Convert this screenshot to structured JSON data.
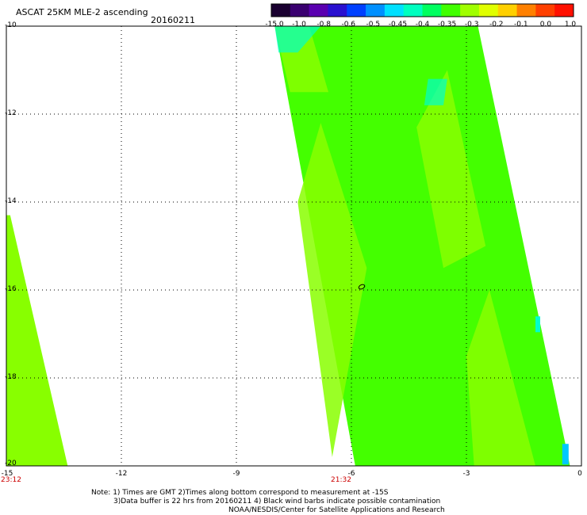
{
  "header": {
    "title": "ASCAT 25KM MLE-2 ascending",
    "date": "20160211"
  },
  "colorbar": {
    "labels": [
      "-15.0",
      "-1.0",
      "-0.8",
      "-0.6",
      "-0.5",
      "-0.45",
      "-0.4",
      "-0.35",
      "-0.3",
      "-0.2",
      "-0.1",
      "0.0",
      "1.0"
    ],
    "colors": [
      "#1a0030",
      "#3a0070",
      "#5a00b0",
      "#2a10d0",
      "#0040ff",
      "#0090ff",
      "#00e0ff",
      "#00ffc0",
      "#00ff60",
      "#40ff00",
      "#a0ff00",
      "#e0ff00",
      "#ffd000",
      "#ff8000",
      "#ff4000",
      "#ff1000"
    ]
  },
  "map": {
    "x_axis": {
      "min": -15,
      "max": 0,
      "ticks": [
        "-15",
        "-12",
        "-9",
        "-6",
        "-3",
        "0"
      ]
    },
    "y_axis": {
      "min": -20,
      "max": -10,
      "ticks": [
        "-10",
        "-12",
        "-14",
        "-16",
        "-18",
        "-20"
      ]
    },
    "time_labels": [
      {
        "lon": -15,
        "text": "23:12"
      },
      {
        "lon": -6,
        "text": "21:32"
      }
    ],
    "colors": {
      "main": "#44ff00",
      "light": "#88ff00",
      "cyan": "#00ffcc",
      "blue": "#00c8ff"
    }
  },
  "notes": {
    "line1": "Note: 1) Times are GMT 2)Times along bottom correspond to measurement at -15S",
    "line2": "3)Data buffer is 22 hrs from 20160211 4) Black wind barbs indicate possible contamination",
    "line3": "NOAA/NESDIS/Center for Satellite Applications and Research"
  }
}
